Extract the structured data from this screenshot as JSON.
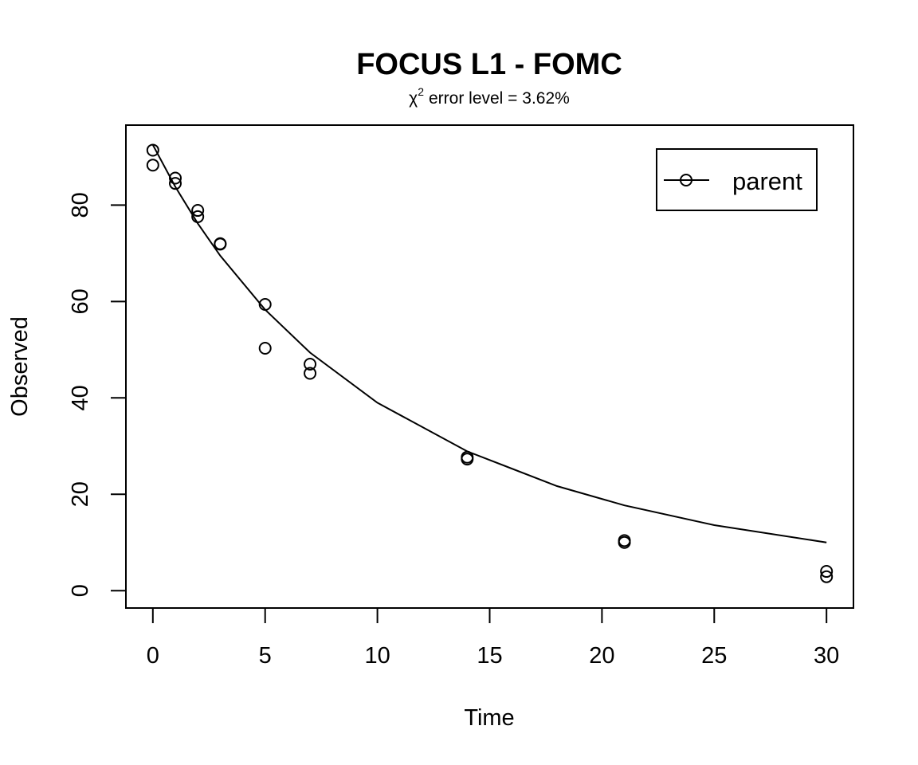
{
  "chart_data": {
    "type": "scatter",
    "title": "FOCUS L1 - FOMC",
    "subtitle": {
      "symbol": "χ",
      "superscript": "2",
      "text": "error level = 3.62%"
    },
    "xlabel": "Time",
    "ylabel": "Observed",
    "xlim": [
      -1.2,
      31.2
    ],
    "ylim": [
      -3.6,
      96.6
    ],
    "x_ticks": [
      0,
      5,
      10,
      15,
      20,
      25,
      30
    ],
    "y_ticks": [
      0,
      20,
      40,
      60,
      80
    ],
    "grid": false,
    "legend": {
      "position": "top-right",
      "entries": [
        "parent"
      ]
    },
    "series": [
      {
        "name": "parent",
        "marker": "open-circle",
        "points": [
          {
            "x": 0,
            "y": 88.3
          },
          {
            "x": 0,
            "y": 91.4
          },
          {
            "x": 1,
            "y": 85.6
          },
          {
            "x": 1,
            "y": 84.5
          },
          {
            "x": 2,
            "y": 78.9
          },
          {
            "x": 2,
            "y": 77.6
          },
          {
            "x": 3,
            "y": 72.0
          },
          {
            "x": 3,
            "y": 71.9
          },
          {
            "x": 5,
            "y": 50.3
          },
          {
            "x": 5,
            "y": 59.4
          },
          {
            "x": 7,
            "y": 47.0
          },
          {
            "x": 7,
            "y": 45.1
          },
          {
            "x": 14,
            "y": 27.7
          },
          {
            "x": 14,
            "y": 27.3
          },
          {
            "x": 21,
            "y": 10.0
          },
          {
            "x": 21,
            "y": 10.4
          },
          {
            "x": 30,
            "y": 2.9
          },
          {
            "x": 30,
            "y": 4.0
          }
        ],
        "fitted_curve": {
          "x": [
            0,
            1,
            2,
            3,
            5,
            7,
            10,
            14,
            18,
            21,
            25,
            30
          ],
          "y": [
            92.5,
            83.8,
            76.2,
            69.5,
            58.3,
            49.4,
            39.0,
            28.9,
            21.7,
            17.7,
            13.6,
            10.0
          ]
        }
      }
    ]
  }
}
